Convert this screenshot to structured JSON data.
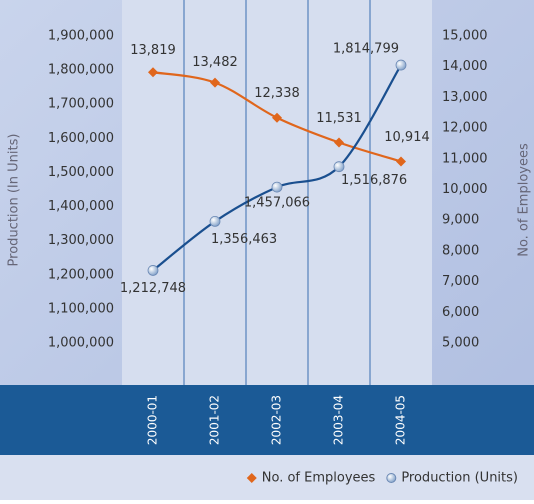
{
  "chart_data": {
    "type": "line",
    "categories": [
      "2000-01",
      "2001-02",
      "2002-03",
      "2003-04",
      "2004-05"
    ],
    "ylabel": "Production (In Units)",
    "y2label": "No. of Employees",
    "ylim": [
      1000000,
      1900000
    ],
    "yticks": [
      {
        "value": 1000000,
        "label": "1,000,000"
      },
      {
        "value": 1100000,
        "label": "1,100,000"
      },
      {
        "value": 1200000,
        "label": "1,200,000"
      },
      {
        "value": 1300000,
        "label": "1,300,000"
      },
      {
        "value": 1400000,
        "label": "1,400,000"
      },
      {
        "value": 1500000,
        "label": "1,500,000"
      },
      {
        "value": 1600000,
        "label": "1,600,000"
      },
      {
        "value": 1700000,
        "label": "1,700,000"
      },
      {
        "value": 1800000,
        "label": "1,800,000"
      },
      {
        "value": 1900000,
        "label": "1,900,000"
      }
    ],
    "y2lim": [
      5000,
      15000
    ],
    "y2ticks": [
      {
        "value": 5000,
        "label": "5,000"
      },
      {
        "value": 6000,
        "label": "6,000"
      },
      {
        "value": 7000,
        "label": "7,000"
      },
      {
        "value": 8000,
        "label": "8,000"
      },
      {
        "value": 9000,
        "label": "9,000"
      },
      {
        "value": 10000,
        "label": "10,000"
      },
      {
        "value": 11000,
        "label": "11,000"
      },
      {
        "value": 12000,
        "label": "12,000"
      },
      {
        "value": 13000,
        "label": "13,000"
      },
      {
        "value": 14000,
        "label": "14,000"
      },
      {
        "value": 15000,
        "label": "15,000"
      }
    ],
    "legend": "bottom-right",
    "series": [
      {
        "name": "No. of Employees",
        "color": "#e0661c",
        "axis": "y2",
        "marker": "diamond",
        "values": [
          13819,
          13482,
          12338,
          11531,
          10914
        ],
        "value_labels": [
          "13,819",
          "13,482",
          "12,338",
          "11,531",
          "10,914"
        ]
      },
      {
        "name": "Production (Units)",
        "color": "#1a4f8f",
        "marker": "circle",
        "values": [
          1212748,
          1356463,
          1457066,
          1516876,
          1814799
        ],
        "value_labels": [
          "1,212,748",
          "1,356,463",
          "1,457,066",
          "1,516,876",
          "1,814,799"
        ]
      }
    ]
  }
}
